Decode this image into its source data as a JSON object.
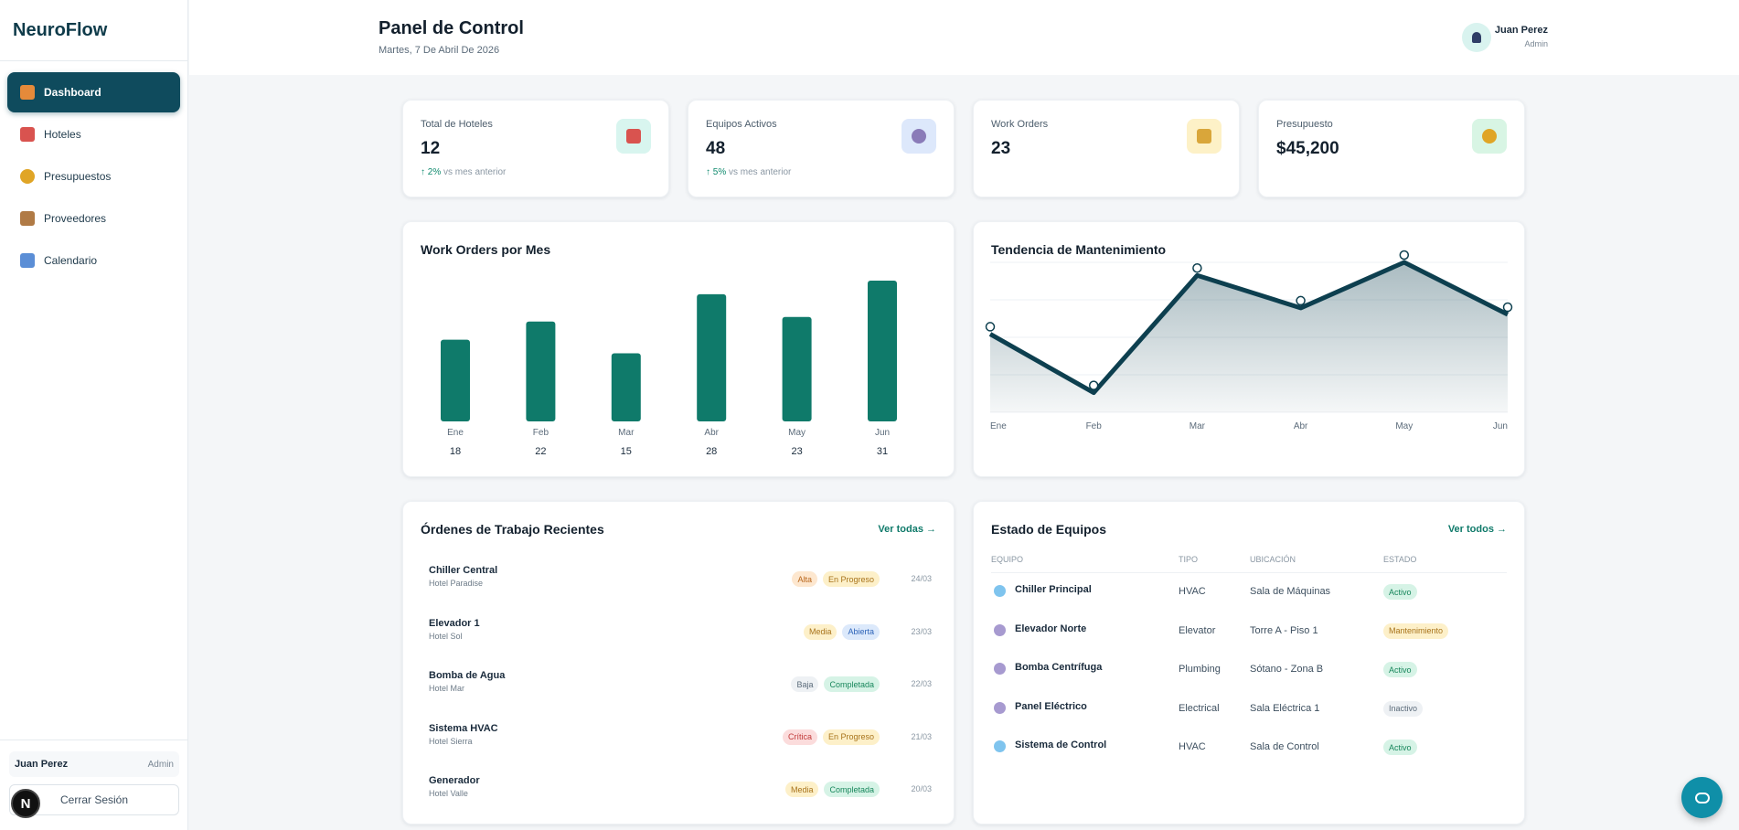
{
  "brand": "NeuroFlow",
  "sidebar": {
    "items": [
      {
        "label": "Dashboard",
        "icon": "house-icon",
        "active": true
      },
      {
        "label": "Hoteles",
        "icon": "hotel-icon"
      },
      {
        "label": "Presupuestos",
        "icon": "money-bag-icon"
      },
      {
        "label": "Proveedores",
        "icon": "package-icon"
      },
      {
        "label": "Calendario",
        "icon": "calendar-icon"
      }
    ],
    "user_name": "Juan Perez",
    "user_role": "Admin",
    "logout_label": "Cerrar Sesión",
    "next_badge": "N"
  },
  "header": {
    "title": "Panel de Control",
    "date": "Martes, 7 De Abril De 2026",
    "user_name": "Juan Perez",
    "user_role": "Admin"
  },
  "stats": [
    {
      "label": "Total de Hoteles",
      "value": "12",
      "trend": "↑ 2%",
      "trend_suffix": " vs mes anterior",
      "icon": "hotel-icon",
      "icon_bg": "#d8f5ef",
      "icon_color": "#d9534f"
    },
    {
      "label": "Equipos Activos",
      "value": "48",
      "trend": "↑ 5%",
      "trend_suffix": " vs mes anterior",
      "icon": "gear-icon",
      "icon_bg": "#dde8fb",
      "icon_color": "#8a7bb8"
    },
    {
      "label": "Work Orders",
      "value": "23",
      "trend": "",
      "trend_suffix": "",
      "icon": "clipboard-icon",
      "icon_bg": "#fdf1c7",
      "icon_color": "#d9a63a"
    },
    {
      "label": "Presupuesto",
      "value": "$45,200",
      "trend": "",
      "trend_suffix": "",
      "icon": "money-bag-icon",
      "icon_bg": "#d8f5e4",
      "icon_color": "#e0a526"
    }
  ],
  "chart_data": [
    {
      "type": "bar",
      "title": "Work Orders por Mes",
      "categories": [
        "Ene",
        "Feb",
        "Mar",
        "Abr",
        "May",
        "Jun"
      ],
      "values": [
        18,
        22,
        15,
        28,
        23,
        31
      ],
      "ylim": [
        0,
        31
      ],
      "color": "#0f7a6a"
    },
    {
      "type": "area",
      "title": "Tendencia de Mantenimiento",
      "categories": [
        "Ene",
        "Feb",
        "Mar",
        "Abr",
        "May",
        "Jun"
      ],
      "values": [
        12,
        3,
        21,
        16,
        23,
        15
      ],
      "ylim": [
        0,
        23
      ],
      "grid": true,
      "color": "#0d3f4f"
    }
  ],
  "orders": {
    "title": "Órdenes de Trabajo Recientes",
    "see_all": "Ver todas →",
    "rows": [
      {
        "title": "Chiller Central",
        "hotel": "Hotel Paradise",
        "priority": "Alta",
        "status": "En Progreso",
        "date": "24/03"
      },
      {
        "title": "Elevador 1",
        "hotel": "Hotel Sol",
        "priority": "Media",
        "status": "Abierta",
        "date": "23/03"
      },
      {
        "title": "Bomba de Agua",
        "hotel": "Hotel Mar",
        "priority": "Baja",
        "status": "Completada",
        "date": "22/03"
      },
      {
        "title": "Sistema HVAC",
        "hotel": "Hotel Sierra",
        "priority": "Crítica",
        "status": "En Progreso",
        "date": "21/03"
      },
      {
        "title": "Generador",
        "hotel": "Hotel Valle",
        "priority": "Media",
        "status": "Completada",
        "date": "20/03"
      }
    ]
  },
  "equipment": {
    "title": "Estado de Equipos",
    "see_all": "Ver todos →",
    "columns": [
      "EQUIPO",
      "TIPO",
      "UBICACIÓN",
      "ESTADO"
    ],
    "rows": [
      {
        "name": "Chiller Principal",
        "type": "HVAC",
        "location": "Sala de Máquinas",
        "status": "Activo",
        "icon": "snowflake-icon"
      },
      {
        "name": "Elevador Norte",
        "type": "Elevator",
        "location": "Torre A - Piso 1",
        "status": "Mantenimiento",
        "icon": "gear-icon"
      },
      {
        "name": "Bomba Centrífuga",
        "type": "Plumbing",
        "location": "Sótano - Zona B",
        "status": "Activo",
        "icon": "gear-icon"
      },
      {
        "name": "Panel Eléctrico",
        "type": "Electrical",
        "location": "Sala Eléctrica 1",
        "status": "Inactivo",
        "icon": "gear-icon"
      },
      {
        "name": "Sistema de Control",
        "type": "HVAC",
        "location": "Sala de Control",
        "status": "Activo",
        "icon": "snowflake-icon"
      }
    ]
  },
  "tag_colors": {
    "Alta": {
      "bg": "#fde7cf",
      "fg": "#b8651a"
    },
    "Media": {
      "bg": "#fdf0c9",
      "fg": "#a8731a"
    },
    "Baja": {
      "bg": "#eef1f4",
      "fg": "#5b6b7a"
    },
    "Crítica": {
      "bg": "#fbdcdc",
      "fg": "#c23b3b"
    },
    "En Progreso": {
      "bg": "#fdf0c9",
      "fg": "#a8731a"
    },
    "Abierta": {
      "bg": "#dce9fb",
      "fg": "#2d63b8"
    },
    "Completada": {
      "bg": "#d6f3e6",
      "fg": "#18875c"
    },
    "Activo": {
      "bg": "#d6f3e6",
      "fg": "#18875c"
    },
    "Mantenimiento": {
      "bg": "#fdf0c9",
      "fg": "#a8731a"
    },
    "Inactivo": {
      "bg": "#eef1f4",
      "fg": "#5b6b7a"
    }
  }
}
